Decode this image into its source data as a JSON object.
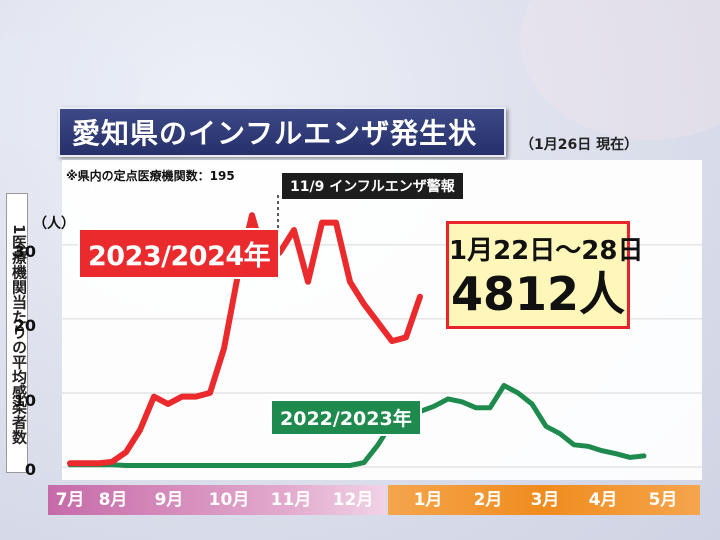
{
  "title": "愛知県のインフルエンザ発生状況",
  "as_of": "（1月26日 現在）",
  "note": "※県内の定点医療機関数：195",
  "warning_label": "11/9 インフルエンザ警報",
  "callout": {
    "range": "1月22日〜28日",
    "value": "4812人"
  },
  "colors": {
    "season_2324": "#ea2a2c",
    "season_2223": "#1e8a4e",
    "months_current": "#c66aa8",
    "months_next": "#f08c1e"
  },
  "chart_data": {
    "type": "line",
    "ylabel": "1医療機関当たりの平均感染者数",
    "yunit": "（人）",
    "ylim": [
      0,
      35
    ],
    "yticks": [
      0,
      10,
      20,
      30
    ],
    "month_labels": [
      "7月",
      "8月",
      "9月",
      "10月",
      "11月",
      "12月",
      "1月",
      "2月",
      "3月",
      "4月",
      "5月"
    ],
    "x_week_range": [
      0,
      43
    ],
    "series": [
      {
        "name": "2023/2024年",
        "color": "#ea2a2c",
        "points": [
          [
            0,
            0.5
          ],
          [
            1,
            0.5
          ],
          [
            2,
            0.5
          ],
          [
            3,
            0.7
          ],
          [
            4,
            2
          ],
          [
            5,
            5
          ],
          [
            6,
            9.5
          ],
          [
            7,
            8.5
          ],
          [
            8,
            9.5
          ],
          [
            9,
            9.5
          ],
          [
            10,
            10
          ],
          [
            11,
            16
          ],
          [
            12,
            26
          ],
          [
            13,
            34
          ],
          [
            14,
            27.5
          ],
          [
            15,
            29
          ],
          [
            16,
            32
          ],
          [
            17,
            25
          ],
          [
            18,
            33
          ],
          [
            19,
            33
          ],
          [
            20,
            25
          ],
          [
            21,
            22
          ],
          [
            22,
            19.5
          ],
          [
            23,
            17
          ],
          [
            24,
            17.5
          ],
          [
            25,
            23
          ]
        ]
      },
      {
        "name": "2022/2023年",
        "color": "#1e8a4e",
        "points": [
          [
            0,
            0.3
          ],
          [
            3,
            0.3
          ],
          [
            4,
            0.2
          ],
          [
            8,
            0.2
          ],
          [
            12,
            0.2
          ],
          [
            16,
            0.2
          ],
          [
            20,
            0.2
          ],
          [
            21,
            0.6
          ],
          [
            22,
            3
          ],
          [
            23,
            6
          ],
          [
            24,
            7.5
          ],
          [
            25,
            7.5
          ],
          [
            26,
            8.2
          ],
          [
            27,
            9.2
          ],
          [
            28,
            8.8
          ],
          [
            29,
            8
          ],
          [
            30,
            8
          ],
          [
            31,
            11
          ],
          [
            32,
            10
          ],
          [
            33,
            8.5
          ],
          [
            34,
            5.5
          ],
          [
            35,
            4.5
          ],
          [
            36,
            3
          ],
          [
            37,
            2.8
          ],
          [
            38,
            2.2
          ],
          [
            39,
            1.8
          ],
          [
            40,
            1.3
          ],
          [
            41,
            1.5
          ]
        ]
      }
    ]
  }
}
